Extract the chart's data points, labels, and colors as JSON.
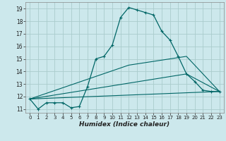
{
  "xlabel": "Humidex (Indice chaleur)",
  "bg_color": "#cce8ec",
  "line_color": "#006666",
  "grid_color": "#aacccc",
  "xlim": [
    -0.5,
    23.5
  ],
  "ylim": [
    10.7,
    19.5
  ],
  "yticks": [
    11,
    12,
    13,
    14,
    15,
    16,
    17,
    18,
    19
  ],
  "xticks": [
    0,
    1,
    2,
    3,
    4,
    5,
    6,
    7,
    8,
    9,
    10,
    11,
    12,
    13,
    14,
    15,
    16,
    17,
    18,
    19,
    20,
    21,
    22,
    23
  ],
  "series": [
    [
      0,
      11.8
    ],
    [
      1,
      11.0
    ],
    [
      2,
      11.5
    ],
    [
      3,
      11.5
    ],
    [
      4,
      11.5
    ],
    [
      5,
      11.1
    ],
    [
      6,
      11.2
    ],
    [
      7,
      12.8
    ],
    [
      8,
      15.0
    ],
    [
      9,
      15.2
    ],
    [
      10,
      16.1
    ],
    [
      11,
      18.3
    ],
    [
      12,
      19.1
    ],
    [
      13,
      18.9
    ],
    [
      14,
      18.7
    ],
    [
      15,
      18.5
    ],
    [
      16,
      17.2
    ],
    [
      17,
      16.5
    ],
    [
      18,
      15.2
    ],
    [
      19,
      13.8
    ],
    [
      20,
      13.2
    ],
    [
      21,
      12.5
    ],
    [
      22,
      12.4
    ],
    [
      23,
      12.4
    ]
  ],
  "line2": [
    [
      0,
      11.8
    ],
    [
      23,
      12.4
    ]
  ],
  "line3": [
    [
      0,
      11.8
    ],
    [
      19,
      13.8
    ],
    [
      23,
      12.4
    ]
  ],
  "line4": [
    [
      0,
      11.8
    ],
    [
      12,
      14.5
    ],
    [
      19,
      15.2
    ],
    [
      23,
      12.4
    ]
  ]
}
